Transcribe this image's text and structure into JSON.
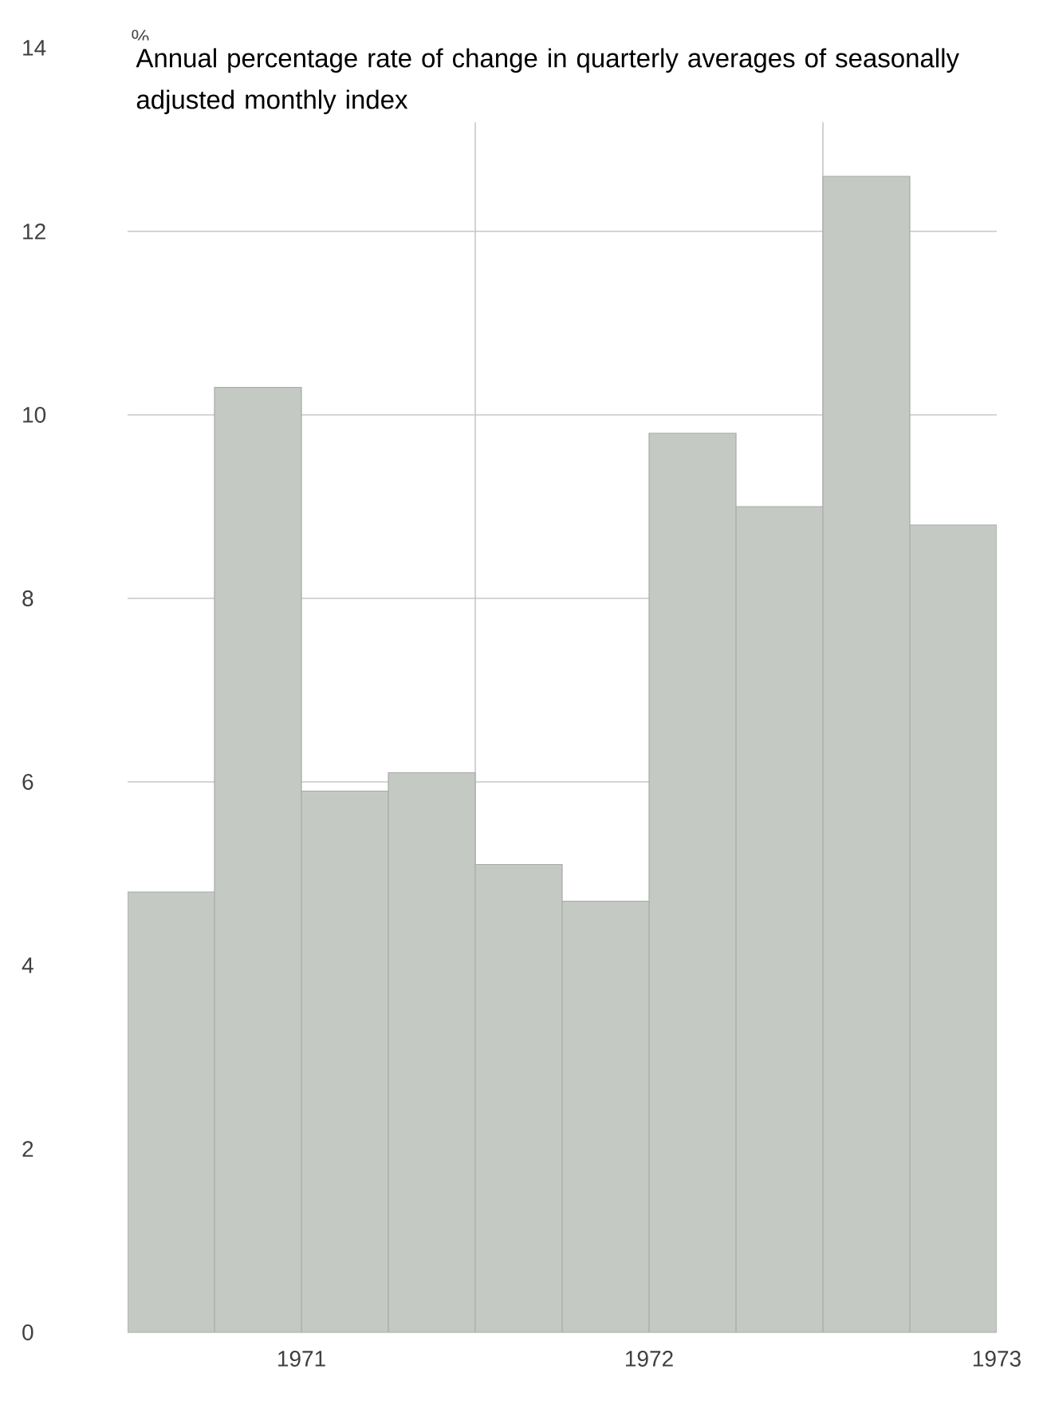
{
  "chart_data": {
    "type": "bar",
    "title": "Annual percentage rate of change in quarterly averages of seasonally adjusted monthly index",
    "ylabel": "%",
    "x": [
      1970.625,
      1970.875,
      1971.125,
      1971.375,
      1971.625,
      1971.875,
      1972.125,
      1972.375,
      1972.625,
      1972.875
    ],
    "values": [
      4.8,
      10.3,
      5.9,
      6.1,
      5.1,
      4.7,
      9.8,
      9.0,
      12.6,
      8.8
    ],
    "color": "#c4c9c4",
    "xlim": [
      1970.5,
      1973.0
    ],
    "xticks": [
      1971,
      1972,
      1973
    ],
    "ylim": [
      0,
      14
    ],
    "yticks": [
      0,
      2,
      4,
      6,
      8,
      10,
      12,
      14
    ],
    "grid": "y",
    "ref_lines": [
      {
        "axis": "x",
        "value": 1971.5,
        "color": "#c8c8c8"
      },
      {
        "axis": "x",
        "value": 1972.5,
        "color": "#c8c8c8"
      }
    ]
  }
}
